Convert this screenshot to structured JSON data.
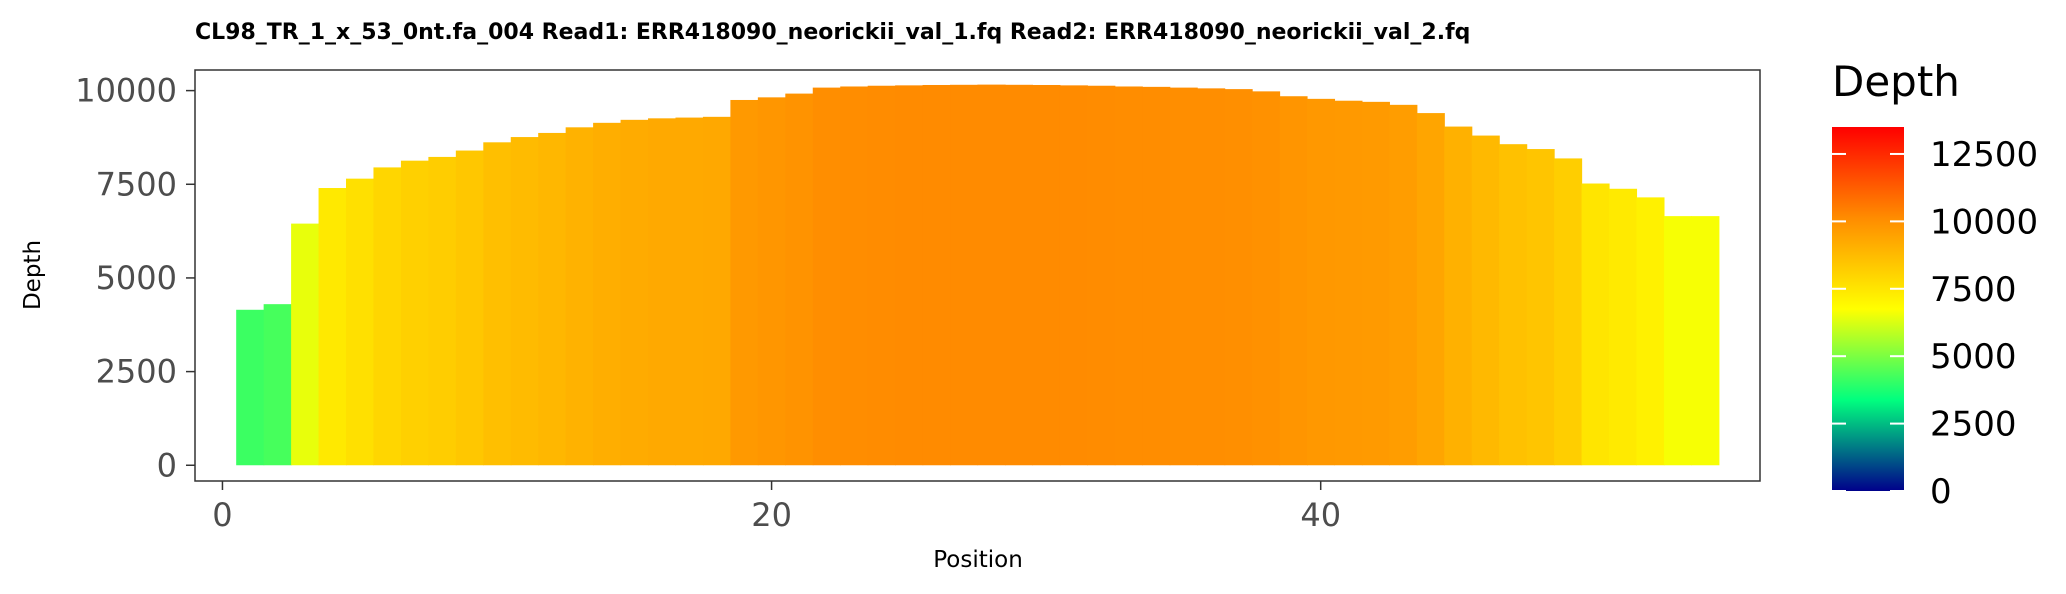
{
  "chart_data": {
    "type": "bar",
    "title": "CL98_TR_1_x_53_0nt.fa_004   Read1: ERR418090_neorickii_val_1.fq   Read2: ERR418090_neorickii_val_2.fq",
    "xlabel": "Position",
    "ylabel": "Depth",
    "xlim": [
      -1,
      56
    ],
    "ylim": [
      -420,
      10550
    ],
    "x_ticks": [
      0,
      20,
      40
    ],
    "y_ticks": [
      0,
      2500,
      5000,
      7500,
      10000
    ],
    "grid": false,
    "legend": {
      "title": "Depth",
      "placement": "right",
      "ticks": [
        0,
        2500,
        5000,
        7500,
        10000,
        12500
      ],
      "range": [
        0,
        13500
      ],
      "colors": [
        "#00008B",
        "#00FF7F",
        "#FFFF00",
        "#FF8C00",
        "#FF0000"
      ],
      "color_stops": [
        0,
        0.25,
        0.5,
        0.75,
        1
      ]
    },
    "x": [
      1,
      2,
      3,
      4,
      5,
      6,
      7,
      8,
      9,
      10,
      11,
      12,
      13,
      14,
      15,
      16,
      17,
      18,
      19,
      20,
      21,
      22,
      23,
      24,
      25,
      26,
      27,
      28,
      29,
      30,
      31,
      32,
      33,
      34,
      35,
      36,
      37,
      38,
      39,
      40,
      41,
      42,
      43,
      44,
      45,
      46,
      47,
      48,
      49,
      50,
      51,
      52,
      53,
      54
    ],
    "values": [
      4150,
      4300,
      6450,
      7400,
      7650,
      7950,
      8130,
      8230,
      8400,
      8620,
      8760,
      8870,
      9020,
      9140,
      9220,
      9260,
      9280,
      9300,
      9750,
      9820,
      9920,
      10080,
      10110,
      10130,
      10140,
      10150,
      10155,
      10160,
      10155,
      10150,
      10140,
      10130,
      10110,
      10100,
      10080,
      10060,
      10040,
      9980,
      9850,
      9780,
      9730,
      9700,
      9620,
      9400,
      9040,
      8800,
      8570,
      8440,
      8190,
      7520,
      7380,
      7150,
      6650,
      6650
    ]
  }
}
